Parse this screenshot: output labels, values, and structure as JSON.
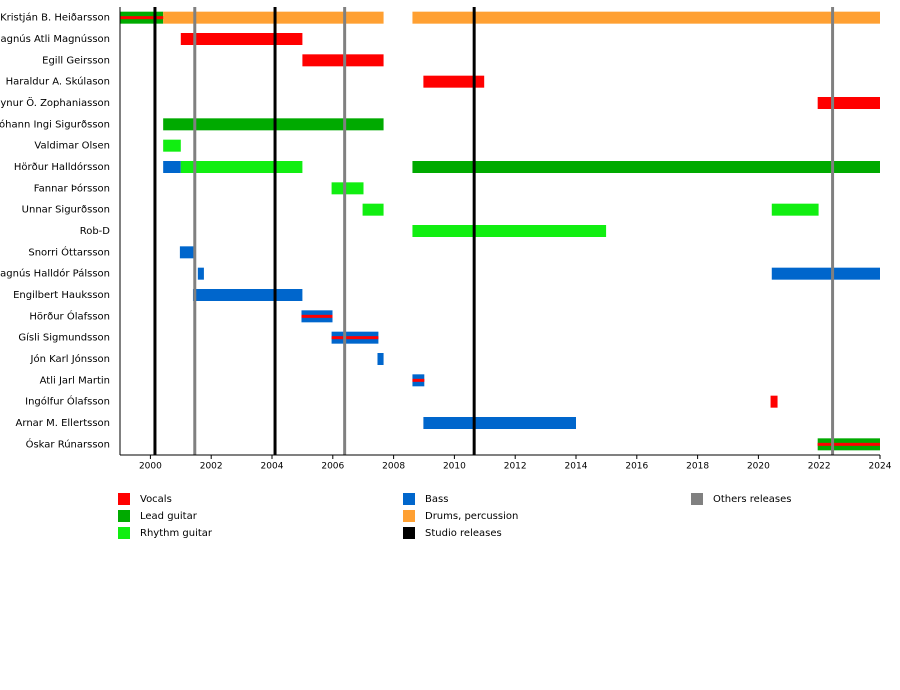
{
  "chart_data": {
    "type": "timeline",
    "xlim": [
      1999,
      2024
    ],
    "xticks": [
      2000,
      2002,
      2004,
      2006,
      2008,
      2010,
      2012,
      2014,
      2016,
      2018,
      2020,
      2022,
      2024
    ],
    "legend": [
      {
        "name": "Vocals",
        "color": "#ff0000"
      },
      {
        "name": "Lead guitar",
        "color": "#00aa00"
      },
      {
        "name": "Rhythm guitar",
        "color": "#11ee11"
      },
      {
        "name": "Bass",
        "color": "#0066cc"
      },
      {
        "name": "Drums, percussion",
        "color": "#ffa032"
      },
      {
        "name": "Studio releases",
        "color": "#000000"
      },
      {
        "name": "Others releases",
        "color": "#808080"
      }
    ],
    "releases": [
      {
        "kind": "Studio releases",
        "x": 2000.15
      },
      {
        "kind": "Studio releases",
        "x": 2004.1
      },
      {
        "kind": "Studio releases",
        "x": 2010.65
      },
      {
        "kind": "Others releases",
        "x": 2001.46
      },
      {
        "kind": "Others releases",
        "x": 2006.39
      },
      {
        "kind": "Others releases",
        "x": 2022.44
      }
    ],
    "rows": [
      {
        "name": "Kristján B. Heiðarsson",
        "bars": [
          {
            "role": "Lead guitar",
            "start": 1999,
            "end": 2000.42
          },
          {
            "role": "Vocals",
            "start": 1999,
            "end": 2001,
            "line": true
          },
          {
            "role": "Drums, percussion",
            "start": 2000.42,
            "end": 2007.67
          },
          {
            "role": "Drums, percussion",
            "start": 2008.62,
            "end": 2024
          }
        ]
      },
      {
        "name": "Magnús Atli Magnússon",
        "bars": [
          {
            "role": "Vocals",
            "start": 2001.0,
            "end": 2005.0
          }
        ]
      },
      {
        "name": "Egill Geirsson",
        "bars": [
          {
            "role": "Vocals",
            "start": 2005.0,
            "end": 2007.67
          }
        ]
      },
      {
        "name": "Haraldur A. Skúlason",
        "bars": [
          {
            "role": "Vocals",
            "start": 2008.98,
            "end": 2010.98
          }
        ]
      },
      {
        "name": "Hlynur Ö. Zophaniasson",
        "bars": [
          {
            "role": "Vocals",
            "start": 2021.95,
            "end": 2024
          }
        ]
      },
      {
        "name": "Jóhann Ingi Sigurðsson",
        "bars": [
          {
            "role": "Lead guitar",
            "start": 2000.42,
            "end": 2007.67
          }
        ]
      },
      {
        "name": "Valdimar Olsen",
        "bars": [
          {
            "role": "Rhythm guitar",
            "start": 2000.42,
            "end": 2001.0
          }
        ]
      },
      {
        "name": "Hörður Halldórsson",
        "bars": [
          {
            "role": "Bass",
            "start": 2000.42,
            "end": 2001.0
          },
          {
            "role": "Rhythm guitar",
            "start": 2001.0,
            "end": 2005.0
          },
          {
            "role": "Lead guitar",
            "start": 2008.62,
            "end": 2024
          }
        ]
      },
      {
        "name": "Fannar Þórsson",
        "bars": [
          {
            "role": "Rhythm guitar",
            "start": 2005.96,
            "end": 2007.01
          }
        ]
      },
      {
        "name": "Unnar Sigurðsson",
        "bars": [
          {
            "role": "Rhythm guitar",
            "start": 2006.98,
            "end": 2007.67
          },
          {
            "role": "Rhythm guitar",
            "start": 2020.44,
            "end": 2021.98
          }
        ]
      },
      {
        "name": "Rob-D",
        "bars": [
          {
            "role": "Rhythm guitar",
            "start": 2008.62,
            "end": 2014.99
          }
        ]
      },
      {
        "name": "Snorri Óttarsson",
        "bars": [
          {
            "role": "Bass",
            "start": 2000.97,
            "end": 2001.43
          }
        ]
      },
      {
        "name": "Magnús Halldór Pálsson",
        "bars": [
          {
            "role": "Bass",
            "start": 2001.56,
            "end": 2001.76
          },
          {
            "role": "Bass",
            "start": 2020.44,
            "end": 2024
          }
        ]
      },
      {
        "name": "Engilbert Hauksson",
        "bars": [
          {
            "role": "Bass",
            "start": 2001.4,
            "end": 2005.0
          }
        ]
      },
      {
        "name": "Hörður Ólafsson",
        "bars": [
          {
            "role": "Bass",
            "start": 2004.97,
            "end": 2005.99
          },
          {
            "role": "Vocals",
            "start": 2004.97,
            "end": 2005.99,
            "line": true
          }
        ]
      },
      {
        "name": "Gísli Sigmundsson",
        "bars": [
          {
            "role": "Bass",
            "start": 2005.96,
            "end": 2007.5
          },
          {
            "role": "Vocals",
            "start": 2005.96,
            "end": 2007.5,
            "line": true
          }
        ]
      },
      {
        "name": "Jón Karl Jónsson",
        "bars": [
          {
            "role": "Bass",
            "start": 2007.47,
            "end": 2007.67
          }
        ]
      },
      {
        "name": "Atli Jarl Martin",
        "bars": [
          {
            "role": "Bass",
            "start": 2008.62,
            "end": 2009.01
          },
          {
            "role": "Vocals",
            "start": 2008.62,
            "end": 2009.01,
            "line": true
          }
        ]
      },
      {
        "name": "Ingólfur Ólafsson",
        "bars": [
          {
            "role": "Vocals",
            "start": 2020.4,
            "end": 2020.63
          }
        ]
      },
      {
        "name": "Arnar M. Ellertsson",
        "bars": [
          {
            "role": "Bass",
            "start": 2008.98,
            "end": 2014.0
          }
        ]
      },
      {
        "name": "Óskar Rúnarsson",
        "bars": [
          {
            "role": "Lead guitar",
            "start": 2021.95,
            "end": 2024
          },
          {
            "role": "Vocals",
            "start": 2021.95,
            "end": 2024,
            "line": true
          }
        ]
      }
    ]
  }
}
